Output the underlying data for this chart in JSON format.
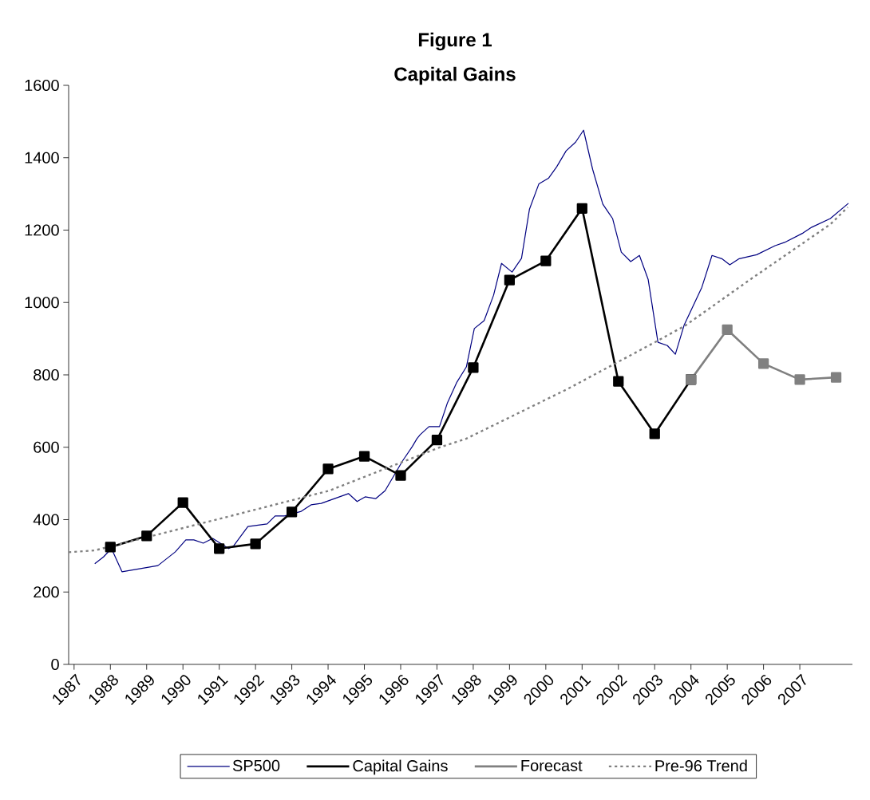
{
  "chart_data": {
    "type": "line",
    "title": "Figure 1",
    "subtitle": "Capital Gains",
    "xlim": [
      1986.85,
      2008.45
    ],
    "xticks": [
      1987,
      1988,
      1989,
      1990,
      1991,
      1992,
      1993,
      1994,
      1995,
      1996,
      1997,
      1998,
      1999,
      2000,
      2001,
      2002,
      2003,
      2004,
      2005,
      2006,
      2007
    ],
    "ylim": [
      0,
      1600
    ],
    "yticks": [
      0,
      200,
      400,
      600,
      800,
      1000,
      1200,
      1400,
      1600
    ],
    "legend": "bottom",
    "series": [
      {
        "name": "SP500",
        "color": "#000080",
        "marker": "none",
        "line_style": "solid",
        "x": [
          1987.57,
          1987.81,
          1988.03,
          1988.32,
          1989.31,
          1989.79,
          1990.08,
          1990.3,
          1990.56,
          1990.82,
          1991.26,
          1991.4,
          1991.79,
          1992.32,
          1992.54,
          1992.8,
          1993.26,
          1993.53,
          1993.81,
          1994.56,
          1994.8,
          1995.02,
          1995.31,
          1995.57,
          1996.05,
          1996.32,
          1996.45,
          1996.54,
          1996.78,
          1997.07,
          1997.29,
          1997.55,
          1997.81,
          1998.03,
          1998.3,
          1998.56,
          1998.78,
          1999.07,
          1999.33,
          1999.55,
          1999.81,
          2000.08,
          2000.3,
          2000.56,
          2000.82,
          2001.04,
          2001.29,
          2001.57,
          2001.84,
          2002.08,
          2002.34,
          2002.58,
          2002.82,
          2003.09,
          2003.35,
          2003.57,
          2003.81,
          2004.3,
          2004.58,
          2004.85,
          2005.07,
          2005.33,
          2005.81,
          2006.32,
          2006.58,
          2007.09,
          2007.33,
          2007.84,
          2008.34
        ],
        "values": [
          278,
          297,
          320,
          256,
          273,
          311,
          344,
          344,
          335,
          348,
          320,
          328,
          381,
          388,
          410,
          410,
          423,
          441,
          445,
          472,
          450,
          463,
          458,
          480,
          562,
          602,
          624,
          635,
          657,
          657,
          723,
          780,
          822,
          928,
          950,
          1020,
          1108,
          1084,
          1122,
          1258,
          1328,
          1344,
          1375,
          1419,
          1443,
          1476,
          1368,
          1272,
          1232,
          1139,
          1113,
          1130,
          1064,
          890,
          881,
          857,
          937,
          1042,
          1130,
          1121,
          1104,
          1121,
          1132,
          1157,
          1166,
          1192,
          1208,
          1232,
          1274
        ]
      },
      {
        "name": "Capital Gains",
        "color": "#000000",
        "marker": "square",
        "line_style": "solid",
        "x": [
          1988,
          1989,
          1990,
          1991,
          1992,
          1993,
          1994,
          1995,
          1996,
          1997,
          1998,
          1999,
          2000,
          2001,
          2002,
          2003,
          2004
        ],
        "values": [
          324,
          355,
          447,
          320,
          333,
          421,
          540,
          575,
          522,
          620,
          820,
          1062,
          1115,
          1260,
          782,
          637,
          787
        ]
      },
      {
        "name": "Forecast",
        "color": "#808080",
        "marker": "square",
        "line_style": "solid",
        "x": [
          2004,
          2005,
          2006,
          2007,
          2008
        ],
        "values": [
          787,
          925,
          831,
          787,
          793
        ]
      },
      {
        "name": "Pre-96 Trend",
        "color": "#808080",
        "marker": "none",
        "line_style": "dotted",
        "x": [
          1986.85,
          1987.57,
          1991.04,
          1994.03,
          1997.11,
          1997.79,
          2000.58,
          2003.04,
          2003.84,
          2005.64,
          2007.84,
          2008.32
        ],
        "values": [
          310,
          315,
          403,
          480,
          601,
          623,
          760,
          892,
          936,
          1064,
          1216,
          1263
        ]
      }
    ]
  }
}
